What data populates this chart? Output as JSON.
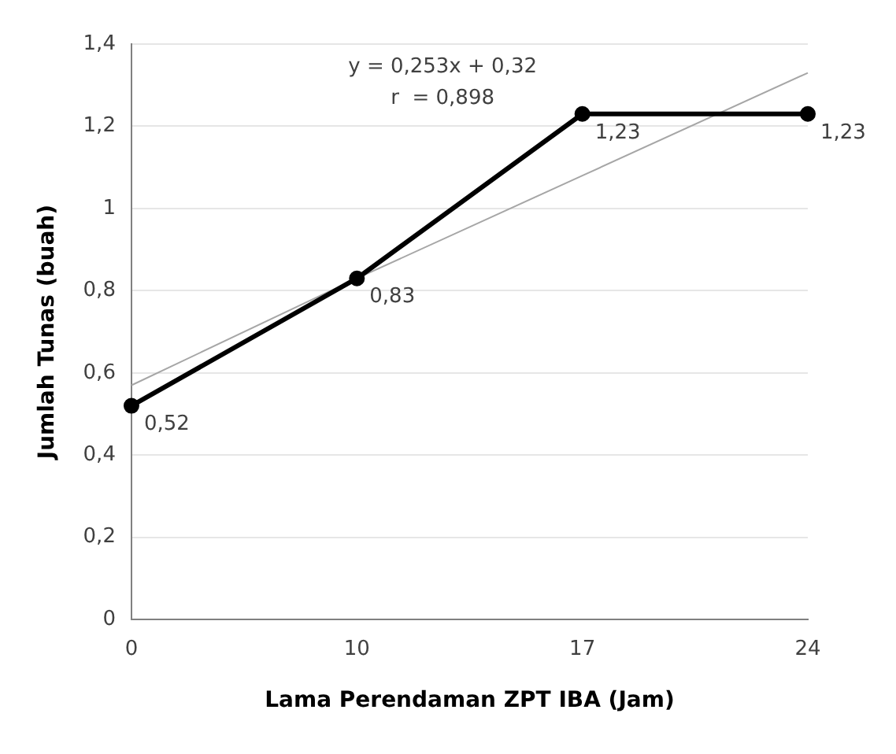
{
  "chart_data": {
    "type": "line",
    "xlabel": "Lama Perendaman ZPT IBA (Jam)",
    "ylabel": "Jumlah Tunas (buah)",
    "categories": [
      "0",
      "10",
      "17",
      "24"
    ],
    "series": [
      {
        "color": "#000000",
        "values": [
          0.52,
          0.83,
          1.23,
          1.23
        ],
        "value_labels": [
          "0,52",
          "0,83",
          "1,23",
          "1,23"
        ],
        "marker": "circle"
      },
      {
        "type": "line",
        "color": "#a6a6a6",
        "values": [
          0.57,
          0.83,
          1.08,
          1.33
        ],
        "marker": "none"
      }
    ],
    "ylim": [
      0,
      1.4
    ],
    "yticks": [
      0,
      {
        "value": 0.2,
        "label": "0,2"
      },
      {
        "value": 0.4,
        "label": "0,4"
      },
      {
        "value": 0.6,
        "label": "0,6"
      },
      {
        "value": 0.8,
        "label": "0,8"
      },
      1,
      {
        "value": 1.2,
        "label": "1,2"
      },
      {
        "value": 1.4,
        "label": "1,4"
      }
    ],
    "annotations": [
      "y = 0,253x + 0,32",
      "r  = 0,898"
    ],
    "grid": "y",
    "legend": false
  }
}
